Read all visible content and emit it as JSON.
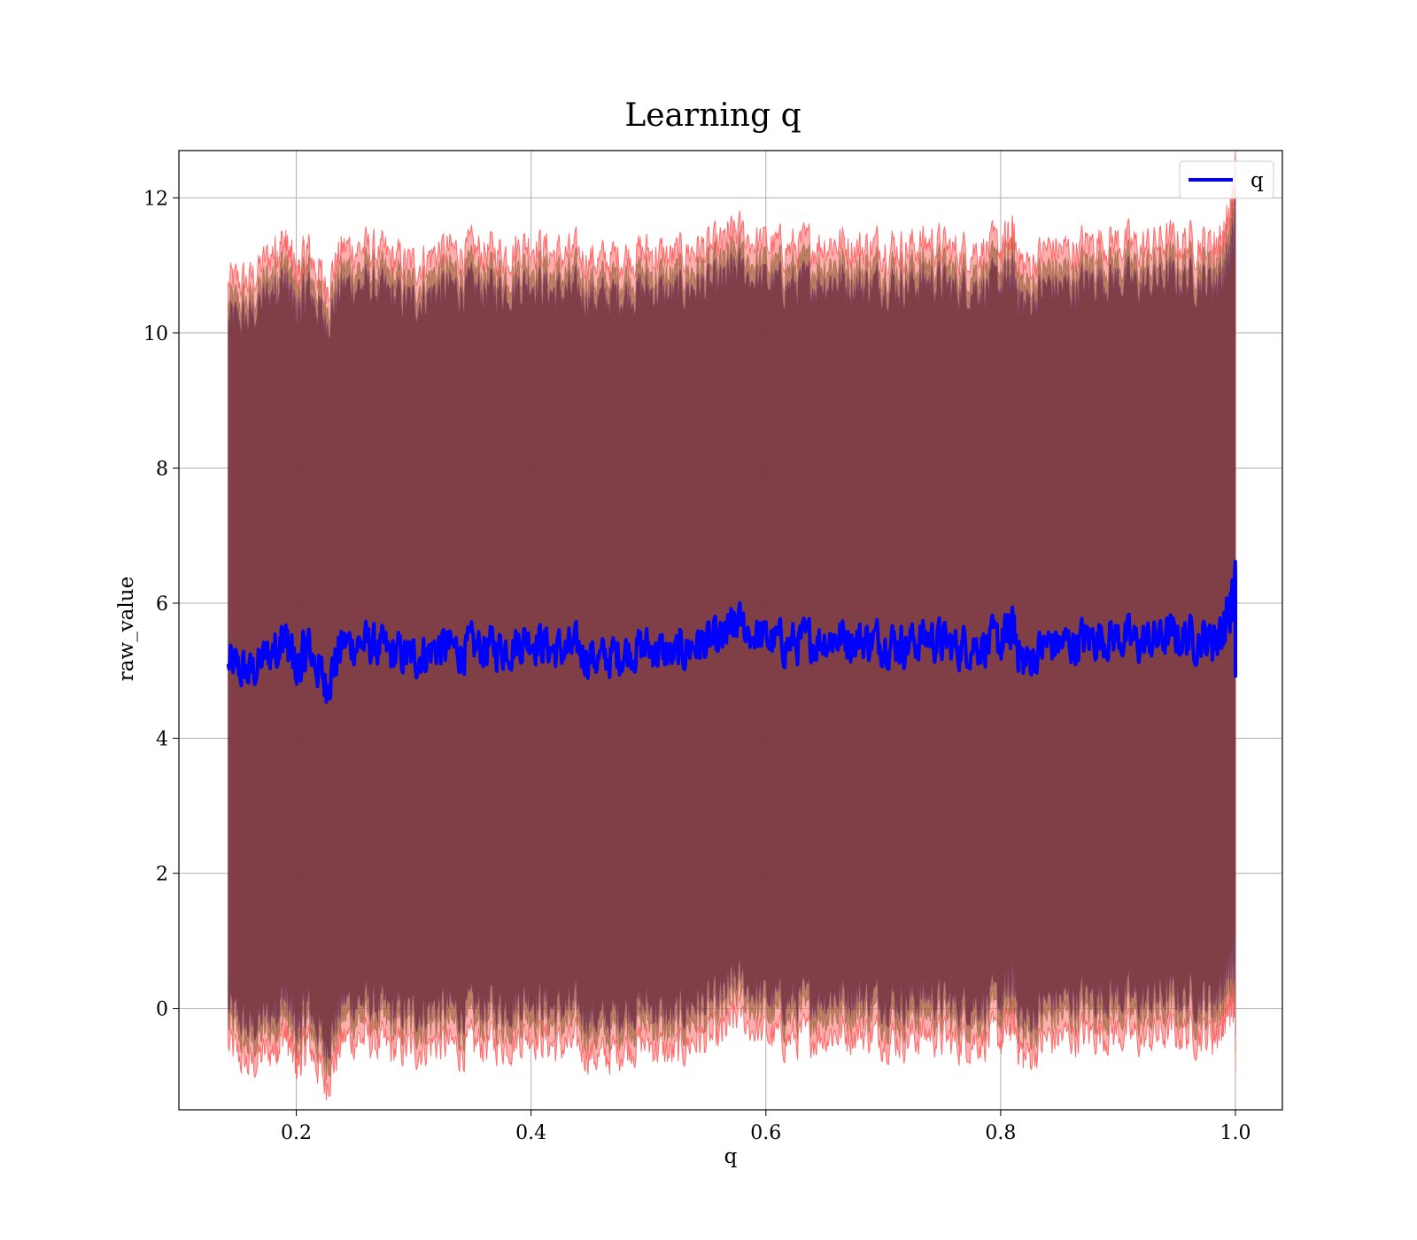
{
  "chart_data": {
    "type": "line",
    "title": "Learning q",
    "xlabel": "q",
    "ylabel": "raw_value",
    "xlim": [
      0.1,
      1.04
    ],
    "ylim": [
      -1.5,
      12.7
    ],
    "xticks": [
      0.2,
      0.4,
      0.6,
      0.8,
      1.0
    ],
    "xtick_labels": [
      "0.2",
      "0.4",
      "0.6",
      "0.8",
      "1.0"
    ],
    "yticks": [
      0,
      2,
      4,
      6,
      8,
      10,
      12
    ],
    "ytick_labels": [
      "0",
      "2",
      "4",
      "6",
      "8",
      "10",
      "12"
    ],
    "grid": true,
    "legend": {
      "position": "top-right",
      "entries": [
        {
          "label": "q",
          "color": "#0000ff"
        }
      ]
    },
    "colors": {
      "line": "#0000ff",
      "outer_band": "#ff6b6b",
      "inner_band": "#8b5a2b",
      "core_band": "#6b2a3c"
    },
    "series": [
      {
        "name": "q",
        "x": [
          0.142,
          0.16,
          0.18,
          0.19,
          0.2,
          0.21,
          0.225,
          0.24,
          0.26,
          0.28,
          0.3,
          0.32,
          0.34,
          0.36,
          0.38,
          0.4,
          0.42,
          0.44,
          0.46,
          0.48,
          0.5,
          0.52,
          0.54,
          0.56,
          0.575,
          0.6,
          0.62,
          0.64,
          0.66,
          0.68,
          0.7,
          0.72,
          0.74,
          0.76,
          0.78,
          0.8,
          0.81,
          0.82,
          0.84,
          0.86,
          0.88,
          0.9,
          0.92,
          0.94,
          0.96,
          0.98,
          0.99,
          0.996,
          1.0
        ],
        "y": [
          5.1,
          4.95,
          5.3,
          5.5,
          5.0,
          5.35,
          4.8,
          5.4,
          5.4,
          5.25,
          5.2,
          5.35,
          5.3,
          5.35,
          5.35,
          5.5,
          5.3,
          5.3,
          5.15,
          5.3,
          5.35,
          5.2,
          5.4,
          5.4,
          5.7,
          5.45,
          5.4,
          5.45,
          5.5,
          5.45,
          5.45,
          5.4,
          5.5,
          5.35,
          5.4,
          5.4,
          5.6,
          5.1,
          5.4,
          5.4,
          5.5,
          5.5,
          5.4,
          5.5,
          5.5,
          5.45,
          5.6,
          5.9,
          6.4
        ],
        "std": [
          5.1,
          5.25,
          5.35,
          5.3,
          5.3,
          5.3,
          5.35,
          5.3,
          5.3,
          5.3,
          5.25,
          5.3,
          5.35,
          5.3,
          5.3,
          5.3,
          5.3,
          5.3,
          5.35,
          5.3,
          5.3,
          5.35,
          5.3,
          5.3,
          5.25,
          5.3,
          5.3,
          5.3,
          5.3,
          5.25,
          5.3,
          5.3,
          5.3,
          5.3,
          5.3,
          5.3,
          5.25,
          5.3,
          5.3,
          5.25,
          5.3,
          5.3,
          5.3,
          5.3,
          5.3,
          5.3,
          5.25,
          5.3,
          5.5
        ]
      }
    ]
  }
}
